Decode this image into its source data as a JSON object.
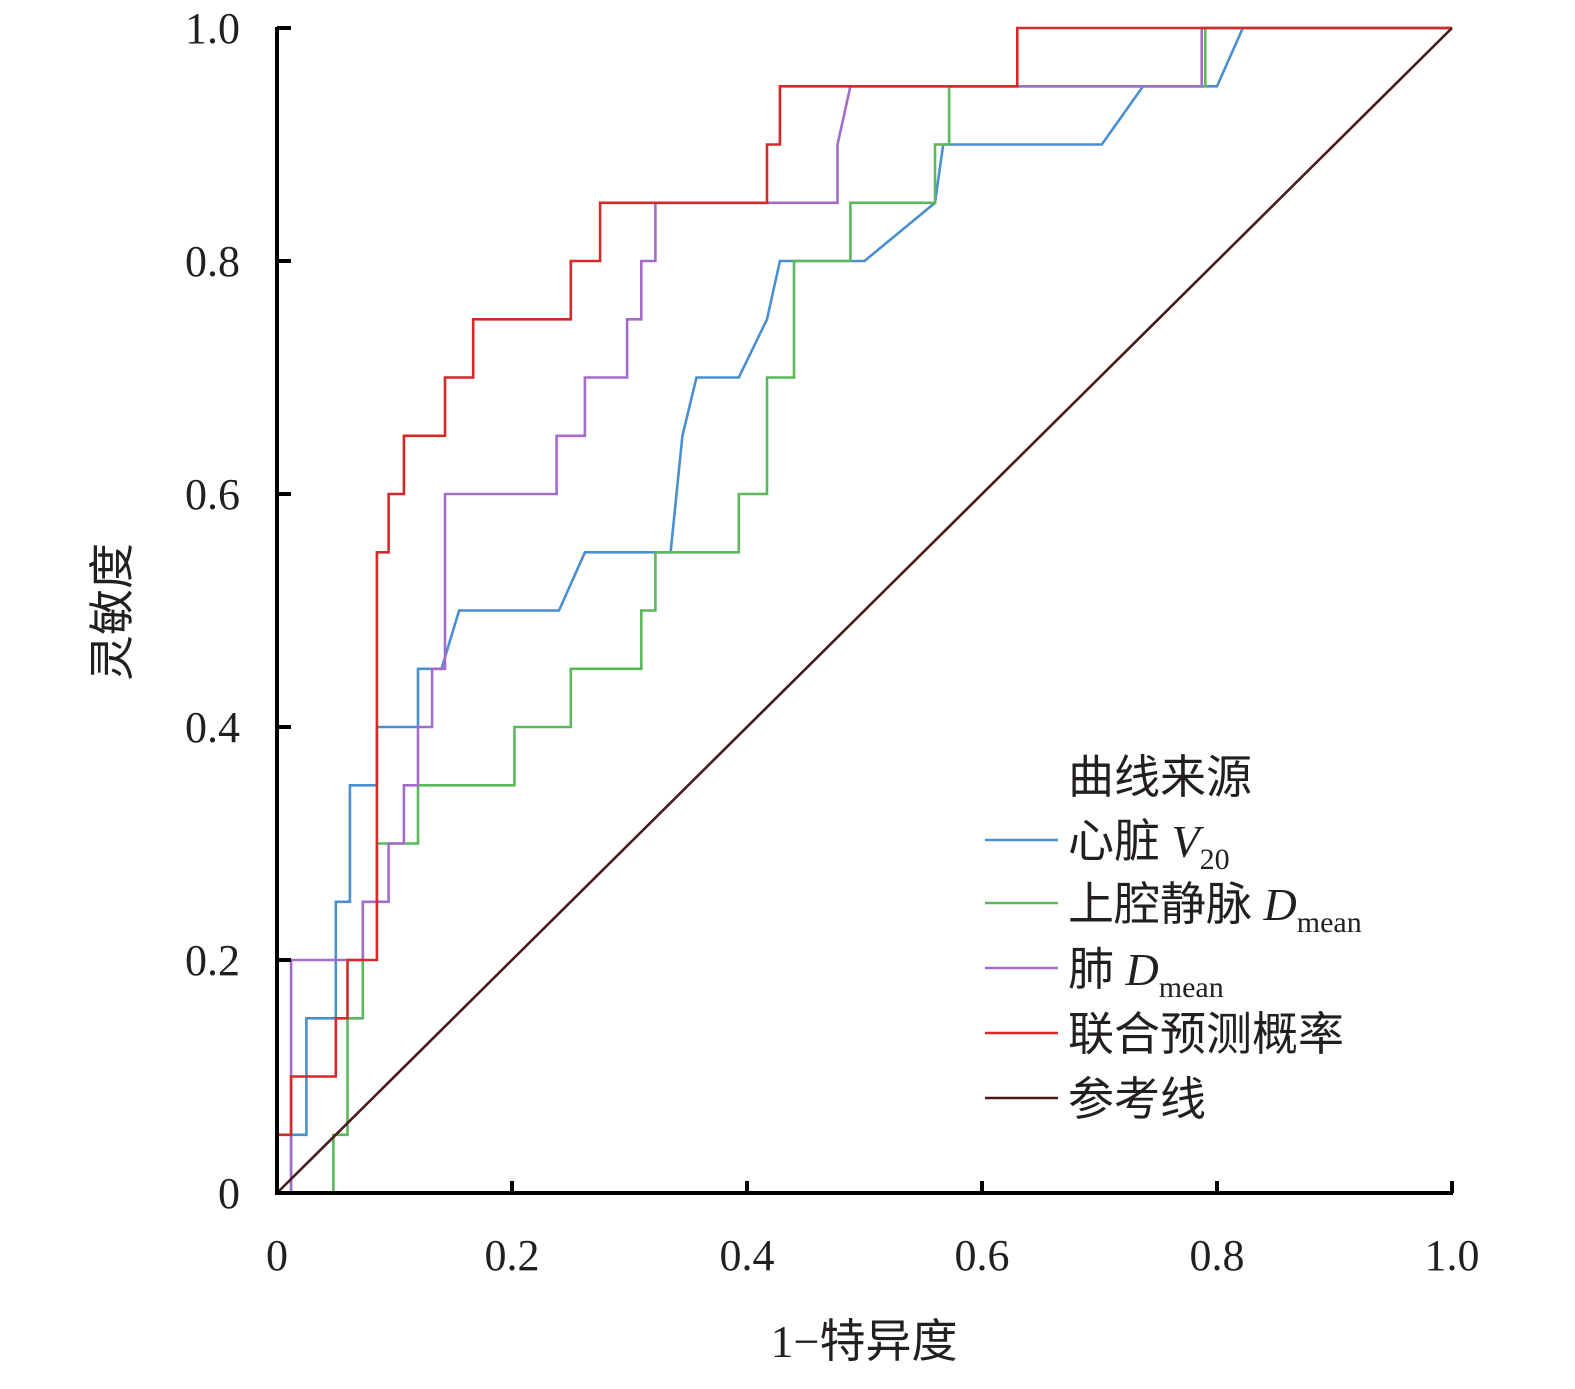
{
  "chart_data": {
    "type": "line",
    "xlabel": "1−特异度",
    "ylabel": "灵敏度",
    "xlim": [
      0,
      1.0
    ],
    "ylim": [
      0,
      1.0
    ],
    "x_ticks": [
      "0",
      "0.2",
      "0.4",
      "0.6",
      "0.8",
      "1.0"
    ],
    "y_ticks": [
      "0",
      "0.2",
      "0.4",
      "0.6",
      "0.8",
      "1.0"
    ],
    "grid": false,
    "legend": {
      "title": "曲线来源",
      "placement": "bottom-right"
    },
    "series": [
      {
        "name": "心脏 V20",
        "label_main": "心脏 ",
        "label_italic": "V",
        "label_sub": "20",
        "color": "#4a8fd0",
        "points": [
          [
            0.012,
            0.0
          ],
          [
            0.012,
            0.05
          ],
          [
            0.025,
            0.05
          ],
          [
            0.025,
            0.15
          ],
          [
            0.05,
            0.15
          ],
          [
            0.05,
            0.25
          ],
          [
            0.062,
            0.25
          ],
          [
            0.062,
            0.35
          ],
          [
            0.085,
            0.35
          ],
          [
            0.085,
            0.4
          ],
          [
            0.12,
            0.4
          ],
          [
            0.12,
            0.45
          ],
          [
            0.14,
            0.45
          ],
          [
            0.155,
            0.5
          ],
          [
            0.24,
            0.5
          ],
          [
            0.262,
            0.55
          ],
          [
            0.335,
            0.55
          ],
          [
            0.345,
            0.65
          ],
          [
            0.357,
            0.7
          ],
          [
            0.393,
            0.7
          ],
          [
            0.417,
            0.75
          ],
          [
            0.428,
            0.8
          ],
          [
            0.44,
            0.8
          ],
          [
            0.5,
            0.8
          ],
          [
            0.56,
            0.85
          ],
          [
            0.567,
            0.9
          ],
          [
            0.702,
            0.9
          ],
          [
            0.737,
            0.95
          ],
          [
            0.8,
            0.95
          ],
          [
            0.822,
            1.0
          ],
          [
            1.0,
            1.0
          ]
        ]
      },
      {
        "name": "上腔静脉 Dmean",
        "label_main": "上腔静脉 ",
        "label_italic": "D",
        "label_sub": "mean",
        "color": "#5cb85c",
        "points": [
          [
            0.048,
            0.0
          ],
          [
            0.048,
            0.05
          ],
          [
            0.06,
            0.05
          ],
          [
            0.06,
            0.15
          ],
          [
            0.073,
            0.15
          ],
          [
            0.073,
            0.25
          ],
          [
            0.085,
            0.25
          ],
          [
            0.085,
            0.3
          ],
          [
            0.12,
            0.3
          ],
          [
            0.12,
            0.35
          ],
          [
            0.202,
            0.35
          ],
          [
            0.202,
            0.4
          ],
          [
            0.25,
            0.4
          ],
          [
            0.25,
            0.45
          ],
          [
            0.31,
            0.45
          ],
          [
            0.31,
            0.5
          ],
          [
            0.322,
            0.5
          ],
          [
            0.322,
            0.55
          ],
          [
            0.393,
            0.55
          ],
          [
            0.393,
            0.6
          ],
          [
            0.417,
            0.6
          ],
          [
            0.417,
            0.7
          ],
          [
            0.44,
            0.7
          ],
          [
            0.44,
            0.8
          ],
          [
            0.488,
            0.8
          ],
          [
            0.488,
            0.85
          ],
          [
            0.56,
            0.85
          ],
          [
            0.56,
            0.9
          ],
          [
            0.572,
            0.9
          ],
          [
            0.572,
            0.95
          ],
          [
            0.79,
            0.95
          ],
          [
            0.79,
            1.0
          ],
          [
            1.0,
            1.0
          ]
        ]
      },
      {
        "name": "肺 Dmean",
        "label_main": "肺 ",
        "label_italic": "D",
        "label_sub": "mean",
        "color": "#a36cc9",
        "points": [
          [
            0.012,
            0.0
          ],
          [
            0.012,
            0.2
          ],
          [
            0.073,
            0.2
          ],
          [
            0.073,
            0.25
          ],
          [
            0.095,
            0.25
          ],
          [
            0.095,
            0.3
          ],
          [
            0.108,
            0.3
          ],
          [
            0.108,
            0.35
          ],
          [
            0.12,
            0.35
          ],
          [
            0.12,
            0.4
          ],
          [
            0.132,
            0.4
          ],
          [
            0.132,
            0.45
          ],
          [
            0.143,
            0.45
          ],
          [
            0.143,
            0.6
          ],
          [
            0.238,
            0.6
          ],
          [
            0.238,
            0.65
          ],
          [
            0.262,
            0.65
          ],
          [
            0.262,
            0.7
          ],
          [
            0.298,
            0.7
          ],
          [
            0.298,
            0.75
          ],
          [
            0.31,
            0.75
          ],
          [
            0.31,
            0.8
          ],
          [
            0.322,
            0.8
          ],
          [
            0.322,
            0.85
          ],
          [
            0.477,
            0.85
          ],
          [
            0.477,
            0.9
          ],
          [
            0.488,
            0.95
          ],
          [
            0.787,
            0.95
          ],
          [
            0.787,
            1.0
          ],
          [
            1.0,
            1.0
          ]
        ]
      },
      {
        "name": "联合预测概率",
        "label_main": "联合预测概率",
        "label_italic": "",
        "label_sub": "",
        "color": "#d42a2a",
        "points": [
          [
            0.0,
            0.0
          ],
          [
            0.0,
            0.05
          ],
          [
            0.012,
            0.05
          ],
          [
            0.012,
            0.1
          ],
          [
            0.05,
            0.1
          ],
          [
            0.05,
            0.15
          ],
          [
            0.06,
            0.15
          ],
          [
            0.06,
            0.2
          ],
          [
            0.085,
            0.2
          ],
          [
            0.085,
            0.4
          ],
          [
            0.085,
            0.55
          ],
          [
            0.095,
            0.55
          ],
          [
            0.095,
            0.6
          ],
          [
            0.108,
            0.6
          ],
          [
            0.108,
            0.65
          ],
          [
            0.143,
            0.65
          ],
          [
            0.143,
            0.7
          ],
          [
            0.167,
            0.7
          ],
          [
            0.167,
            0.75
          ],
          [
            0.25,
            0.75
          ],
          [
            0.25,
            0.8
          ],
          [
            0.275,
            0.8
          ],
          [
            0.275,
            0.85
          ],
          [
            0.417,
            0.85
          ],
          [
            0.417,
            0.9
          ],
          [
            0.428,
            0.9
          ],
          [
            0.428,
            0.95
          ],
          [
            0.63,
            0.95
          ],
          [
            0.63,
            1.0
          ],
          [
            1.0,
            1.0
          ]
        ]
      },
      {
        "name": "参考线",
        "label_main": "参考线",
        "label_italic": "",
        "label_sub": "",
        "color": "#4a1a1a",
        "points": [
          [
            0.0,
            0.0
          ],
          [
            1.0,
            1.0
          ]
        ]
      }
    ]
  }
}
